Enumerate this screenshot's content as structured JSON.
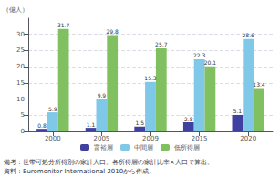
{
  "chart_data": {
    "type": "bar",
    "categories": [
      "2000",
      "2005",
      "2009",
      "2015",
      "2020"
    ],
    "series": [
      {
        "name": "富裕層",
        "color": "#4040a0",
        "values": [
          0.8,
          1.1,
          1.5,
          2.8,
          5.1
        ]
      },
      {
        "name": "中間層",
        "color": "#80c8e8",
        "values": [
          5.9,
          9.9,
          15.3,
          22.3,
          28.6
        ]
      },
      {
        "name": "低所得層",
        "color": "#80c060",
        "values": [
          31.7,
          29.8,
          25.7,
          20.1,
          13.4
        ]
      }
    ],
    "ylabel": "（億人）",
    "ylim": [
      0,
      35
    ],
    "yticks": [
      0,
      5,
      10,
      15,
      20,
      25,
      30
    ],
    "grid": true,
    "data_labels": true,
    "legend": "bottom",
    "annotations": [
      "備考：世帯可処分所得別の家計人口。各所得層の家計比率×人口で算出。",
      "資料：Euromonitor International 2010から作成。"
    ]
  }
}
